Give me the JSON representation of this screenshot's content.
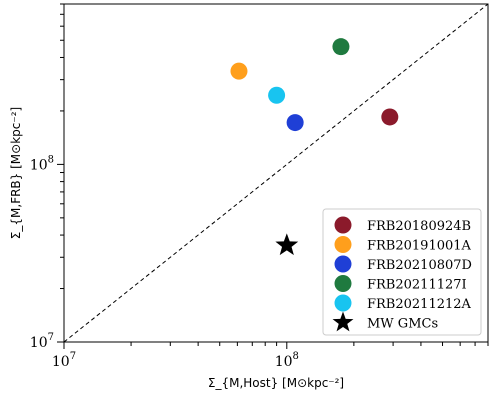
{
  "chart_data": {
    "type": "scatter",
    "title": "",
    "xlabel": "Σ_{M,Host} [M⊙kpc⁻²]",
    "ylabel": "Σ_{M,FRB} [M⊙kpc⁻²]",
    "xscale": "log",
    "yscale": "log",
    "xlim": [
      10000000.0,
      800000000.0
    ],
    "ylim": [
      10000000.0,
      800000000.0
    ],
    "grid": false,
    "legend_position": "bottom-right",
    "x_ticks": [
      {
        "value": 10000000.0,
        "label": "10",
        "exp": "7"
      },
      {
        "value": 100000000.0,
        "label": "10",
        "exp": "8"
      }
    ],
    "y_ticks": [
      {
        "value": 10000000.0,
        "label": "10",
        "exp": "7"
      },
      {
        "value": 100000000.0,
        "label": "10",
        "exp": "8"
      }
    ],
    "reference_line": {
      "style": "dashed",
      "relation": "y = x"
    },
    "series": [
      {
        "name": "FRB20180924B",
        "color": "#8b1a2b",
        "marker": "circle",
        "x": [
          290000000.0
        ],
        "y": [
          185000000.0
        ]
      },
      {
        "name": "FRB20191001A",
        "color": "#ff9f1c",
        "marker": "circle",
        "x": [
          61000000.0
        ],
        "y": [
          335000000.0
        ]
      },
      {
        "name": "FRB20210807D",
        "color": "#1f3fd6",
        "marker": "circle",
        "x": [
          109000000.0
        ],
        "y": [
          172000000.0
        ]
      },
      {
        "name": "FRB20211127I",
        "color": "#1f7a3f",
        "marker": "circle",
        "x": [
          175000000.0
        ],
        "y": [
          460000000.0
        ]
      },
      {
        "name": "FRB20211212A",
        "color": "#18c4f0",
        "marker": "circle",
        "x": [
          90000000.0
        ],
        "y": [
          245000000.0
        ]
      },
      {
        "name": "MW GMCs",
        "color": "#000000",
        "marker": "star",
        "x": [
          100000000.0
        ],
        "y": [
          35000000.0
        ]
      }
    ]
  }
}
